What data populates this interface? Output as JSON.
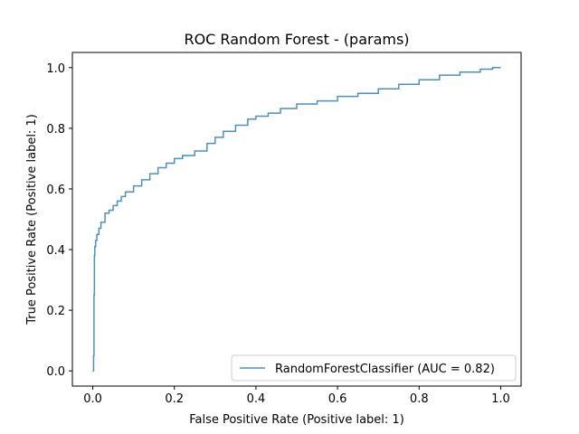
{
  "chart_data": {
    "type": "line",
    "title": "ROC Random Forest - (params)",
    "xlabel": "False Positive Rate (Positive label: 1)",
    "ylabel": "True Positive Rate (Positive label: 1)",
    "xlim": [
      -0.05,
      1.05
    ],
    "ylim": [
      -0.05,
      1.05
    ],
    "xticks": [
      "0.0",
      "0.2",
      "0.4",
      "0.6",
      "0.8",
      "1.0"
    ],
    "yticks": [
      "0.0",
      "0.2",
      "0.4",
      "0.6",
      "0.8",
      "1.0"
    ],
    "grid": false,
    "legend_position": "lower right",
    "series": [
      {
        "name": "RandomForestClassifier (AUC = 0.82)",
        "color": "#4a90c0",
        "x": [
          0,
          0.002,
          0.003,
          0.004,
          0.005,
          0.007,
          0.01,
          0.015,
          0.02,
          0.03,
          0.04,
          0.05,
          0.06,
          0.07,
          0.08,
          0.1,
          0.12,
          0.14,
          0.16,
          0.18,
          0.2,
          0.22,
          0.25,
          0.28,
          0.3,
          0.32,
          0.35,
          0.38,
          0.4,
          0.43,
          0.46,
          0.5,
          0.55,
          0.6,
          0.65,
          0.7,
          0.75,
          0.8,
          0.85,
          0.9,
          0.95,
          0.98,
          1.0
        ],
        "y": [
          0,
          0.05,
          0.25,
          0.38,
          0.41,
          0.43,
          0.45,
          0.47,
          0.49,
          0.52,
          0.53,
          0.545,
          0.56,
          0.575,
          0.59,
          0.61,
          0.63,
          0.65,
          0.67,
          0.685,
          0.7,
          0.71,
          0.725,
          0.75,
          0.77,
          0.79,
          0.81,
          0.83,
          0.84,
          0.85,
          0.865,
          0.88,
          0.89,
          0.905,
          0.915,
          0.93,
          0.945,
          0.96,
          0.975,
          0.985,
          0.995,
          1.0,
          1.0
        ]
      }
    ]
  }
}
